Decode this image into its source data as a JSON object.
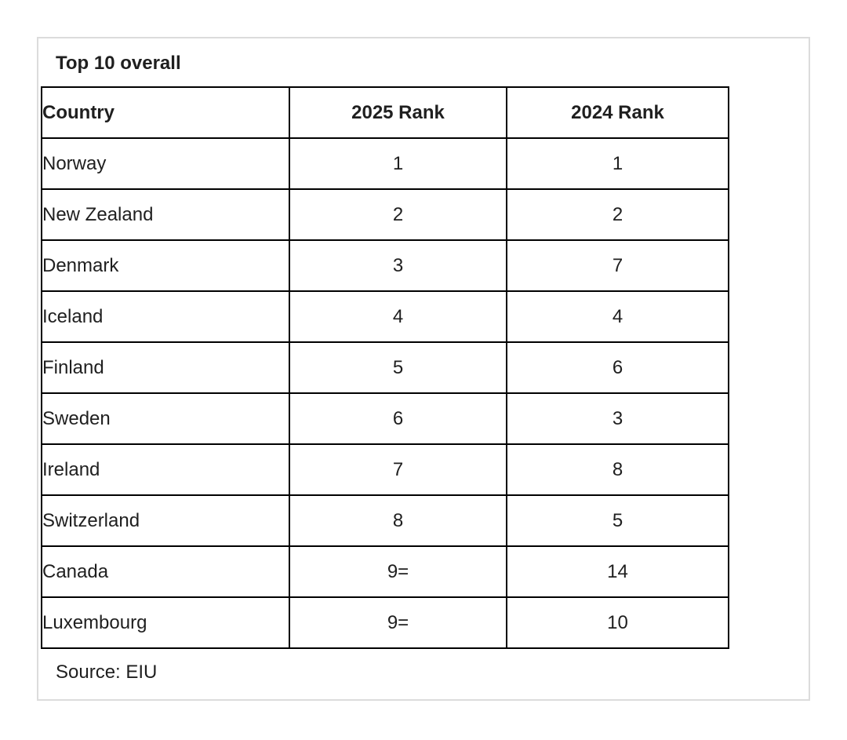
{
  "chart_data": {
    "type": "table",
    "title": "Top 10 overall",
    "columns": [
      "Country",
      "2025 Rank",
      "2024 Rank"
    ],
    "rows": [
      [
        "Norway",
        "1",
        "1"
      ],
      [
        "New Zealand",
        "2",
        "2"
      ],
      [
        "Denmark",
        "3",
        "7"
      ],
      [
        "Iceland",
        "4",
        "4"
      ],
      [
        "Finland",
        "5",
        "6"
      ],
      [
        "Sweden",
        "6",
        "3"
      ],
      [
        "Ireland",
        "7",
        "8"
      ],
      [
        "Switzerland",
        "8",
        "5"
      ],
      [
        "Canada",
        "9=",
        "14"
      ],
      [
        "Luxembourg",
        "9=",
        "10"
      ]
    ],
    "source": "Source: EIU"
  },
  "colors": {
    "background": "#ffffff",
    "card_border": "#dcdcdc",
    "table_border": "#000000",
    "text": "#1f1f1f"
  }
}
